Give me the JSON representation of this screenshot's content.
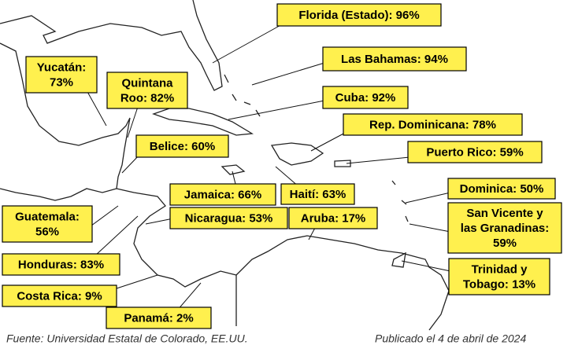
{
  "labels": [
    {
      "lines": [
        "Florida (Estado): 96%"
      ]
    },
    {
      "lines": [
        "Las Bahamas: 94%"
      ]
    },
    {
      "lines": [
        "Cuba: 92%"
      ]
    },
    {
      "lines": [
        "Rep. Dominicana: 78%"
      ]
    },
    {
      "lines": [
        "Puerto Rico: 59%"
      ]
    },
    {
      "lines": [
        "Dominica: 50%"
      ]
    },
    {
      "lines": [
        "San Vicente y",
        "las Granadinas:",
        "59%"
      ]
    },
    {
      "lines": [
        "Trinidad y",
        "Tobago: 13%"
      ]
    },
    {
      "lines": [
        "Yucatán:",
        "73%"
      ]
    },
    {
      "lines": [
        "Quintana",
        "Roo: 82%"
      ]
    },
    {
      "lines": [
        "Belice: 60%"
      ]
    },
    {
      "lines": [
        "Jamaica: 66%"
      ]
    },
    {
      "lines": [
        "Haití: 63%"
      ]
    },
    {
      "lines": [
        "Nicaragua: 53%"
      ]
    },
    {
      "lines": [
        "Aruba: 17%"
      ]
    },
    {
      "lines": [
        "Guatemala:",
        "56%"
      ]
    },
    {
      "lines": [
        "Honduras: 83%"
      ]
    },
    {
      "lines": [
        "Costa Rica: 9%"
      ]
    },
    {
      "lines": [
        "Panamá: 2%"
      ]
    }
  ],
  "footer": {
    "source": "Fuente: Universidad Estatal de Colorado, EE.UU.",
    "published": "Publicado el 4 de abril de 2024"
  }
}
